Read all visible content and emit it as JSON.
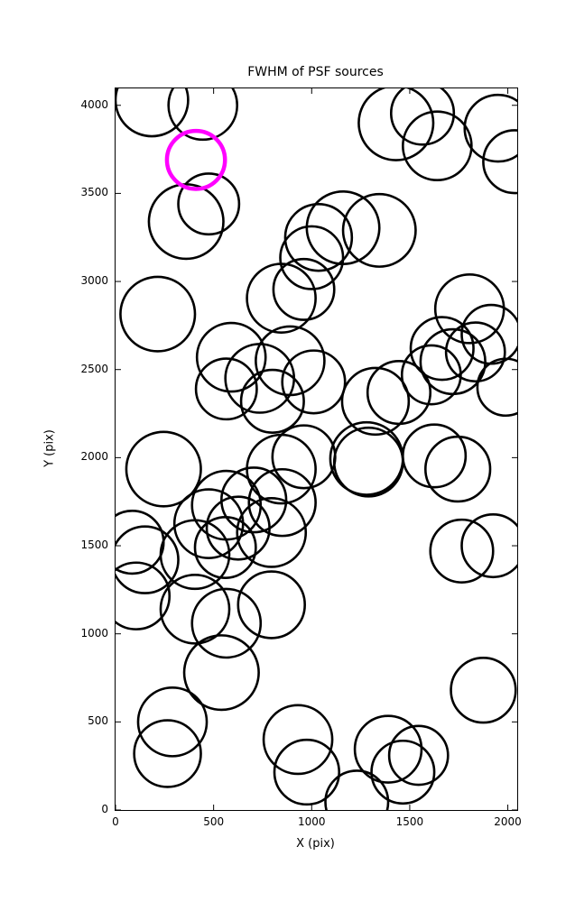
{
  "figure": {
    "background": "#ffffff",
    "frame_color": "#000000"
  },
  "chart_data": {
    "type": "scatter",
    "title": "FWHM of PSF sources",
    "xlabel": "X (pix)",
    "ylabel": "Y (pix)",
    "xlim": [
      0,
      2048
    ],
    "ylim": [
      0,
      4096
    ],
    "xticks": [
      0,
      500,
      1000,
      1500,
      2000
    ],
    "yticks": [
      0,
      500,
      1000,
      1500,
      2000,
      2500,
      3000,
      3500,
      4000
    ],
    "grid": false,
    "legend": "none",
    "marker_style": {
      "fill": "none",
      "stroke": "#000000",
      "stroke_width": 2.6
    },
    "highlight_style": {
      "fill": "none",
      "stroke": "#ff00ff",
      "stroke_width": 4.5
    },
    "note": "open circles mark PSF sources, radius ~ FWHM scale in detector pixels; one highlighted source in magenta",
    "highlight_circle": [
      410,
      3690,
      148
    ],
    "circles": [
      [
        185,
        4030,
        185
      ],
      [
        445,
        4000,
        175
      ],
      [
        360,
        3340,
        190
      ],
      [
        475,
        3440,
        155
      ],
      [
        1430,
        3900,
        190
      ],
      [
        1565,
        3955,
        160
      ],
      [
        1640,
        3770,
        175
      ],
      [
        1950,
        3870,
        170
      ],
      [
        2035,
        3680,
        160
      ],
      [
        1035,
        3250,
        170
      ],
      [
        1160,
        3305,
        185
      ],
      [
        1345,
        3290,
        185
      ],
      [
        1000,
        3135,
        160
      ],
      [
        215,
        2815,
        190
      ],
      [
        845,
        2905,
        175
      ],
      [
        960,
        2955,
        155
      ],
      [
        1805,
        2845,
        175
      ],
      [
        1915,
        2700,
        150
      ],
      [
        590,
        2570,
        175
      ],
      [
        735,
        2450,
        175
      ],
      [
        565,
        2390,
        155
      ],
      [
        890,
        2550,
        175
      ],
      [
        800,
        2320,
        160
      ],
      [
        1010,
        2430,
        160
      ],
      [
        1665,
        2620,
        160
      ],
      [
        1720,
        2545,
        165
      ],
      [
        1835,
        2600,
        150
      ],
      [
        1610,
        2470,
        150
      ],
      [
        1990,
        2400,
        145
      ],
      [
        1325,
        2320,
        170
      ],
      [
        1445,
        2370,
        160
      ],
      [
        245,
        1935,
        190
      ],
      [
        845,
        1935,
        175
      ],
      [
        960,
        2005,
        160
      ],
      [
        1280,
        1995,
        185
      ],
      [
        1290,
        1975,
        175
      ],
      [
        1625,
        2010,
        160
      ],
      [
        1745,
        1935,
        165
      ],
      [
        565,
        1730,
        175
      ],
      [
        705,
        1760,
        165
      ],
      [
        850,
        1745,
        170
      ],
      [
        475,
        1625,
        175
      ],
      [
        625,
        1600,
        160
      ],
      [
        795,
        1575,
        175
      ],
      [
        85,
        1520,
        160
      ],
      [
        150,
        1420,
        170
      ],
      [
        405,
        1450,
        175
      ],
      [
        560,
        1490,
        155
      ],
      [
        1765,
        1470,
        160
      ],
      [
        1925,
        1500,
        160
      ],
      [
        105,
        1215,
        170
      ],
      [
        405,
        1140,
        175
      ],
      [
        565,
        1060,
        175
      ],
      [
        795,
        1165,
        170
      ],
      [
        540,
        780,
        190
      ],
      [
        290,
        500,
        175
      ],
      [
        265,
        320,
        170
      ],
      [
        930,
        400,
        175
      ],
      [
        975,
        215,
        165
      ],
      [
        1390,
        345,
        170
      ],
      [
        1465,
        215,
        160
      ],
      [
        1545,
        310,
        150
      ],
      [
        1875,
        680,
        165
      ],
      [
        1230,
        45,
        160
      ]
    ]
  }
}
